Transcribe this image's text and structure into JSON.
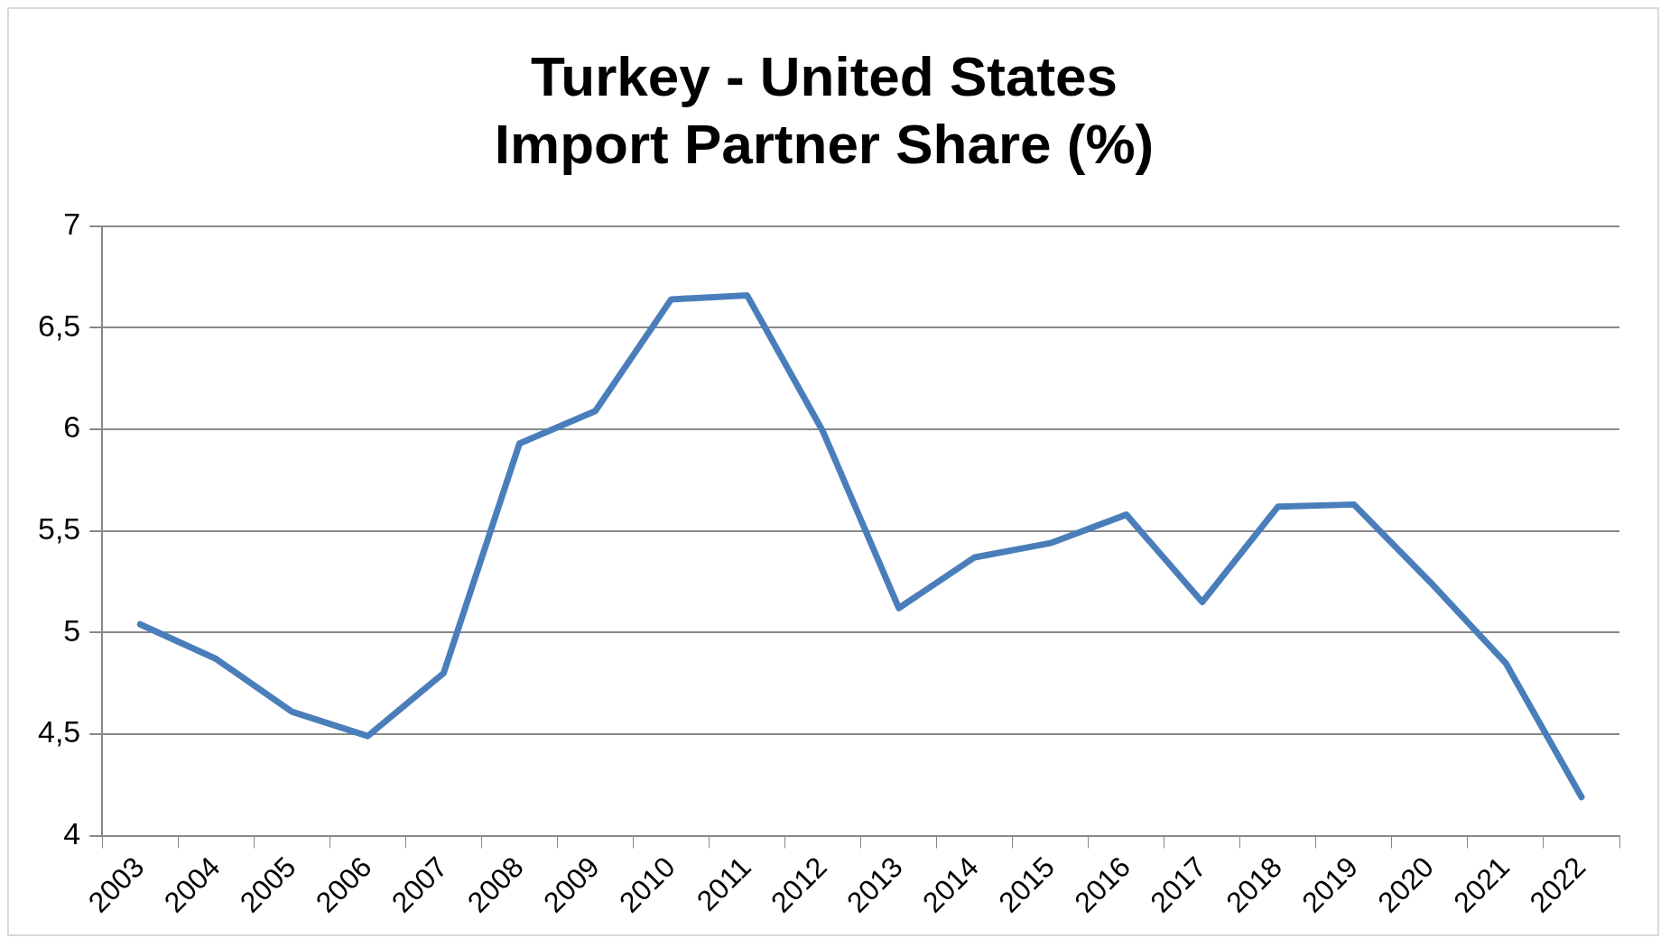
{
  "chart_data": {
    "type": "line",
    "title": "Turkey - United States\nImport Partner Share (%)",
    "categories": [
      "2003",
      "2004",
      "2005",
      "2006",
      "2007",
      "2008",
      "2009",
      "2010",
      "2011",
      "2012",
      "2013",
      "2014",
      "2015",
      "2016",
      "2017",
      "2018",
      "2019",
      "2020",
      "2021",
      "2022"
    ],
    "series": [
      {
        "color": "#4a7ebb",
        "values": [
          5.04,
          4.87,
          4.61,
          4.49,
          4.8,
          5.93,
          6.09,
          6.64,
          6.66,
          5.99,
          5.12,
          5.37,
          5.44,
          5.58,
          5.15,
          5.62,
          5.63,
          5.25,
          4.85,
          4.19
        ]
      }
    ],
    "ylim": [
      4,
      7
    ],
    "yticks": [
      4,
      {
        "value": 4.5,
        "label": "4,5"
      },
      5,
      {
        "value": 5.5,
        "label": "5,5"
      },
      6,
      {
        "value": 6.5,
        "label": "6,5"
      },
      7
    ],
    "grid": "y",
    "legend": false,
    "marker": "none",
    "line_style": "solid"
  }
}
